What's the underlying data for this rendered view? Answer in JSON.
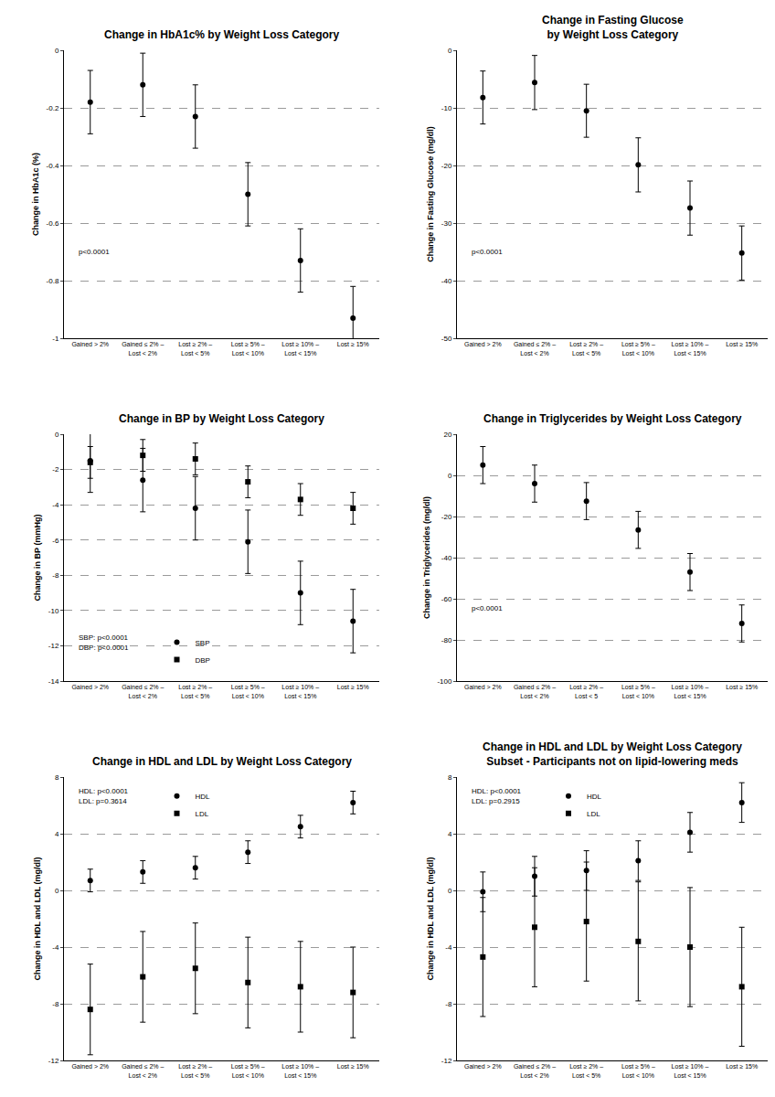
{
  "chart_data": [
    {
      "type": "scatter",
      "title": "Change in HbA1c% by Weight Loss Category",
      "y_label": "Change in HbA1c (%)",
      "categories": [
        "Gained > 2%",
        "Gained ≤ 2% – Lost < 2%",
        "Lost ≥ 2% – Lost < 5%",
        "Lost ≥ 5% – Lost < 10%",
        "Lost ≥ 10% – Lost < 15%",
        "Lost ≥ 15%"
      ],
      "series": [
        {
          "marker": "circle",
          "color": "#000000",
          "values": [
            -0.18,
            -0.12,
            -0.23,
            -0.5,
            -0.73,
            -0.93
          ],
          "error": [
            0.11,
            0.11,
            0.11,
            0.11,
            0.11,
            0.11
          ]
        }
      ],
      "ylim": [
        -1,
        0
      ],
      "yticks": [
        -1,
        -0.8,
        -0.6,
        -0.4,
        -0.2,
        0
      ],
      "grid": true,
      "annotations": [
        "p<0.0001"
      ]
    },
    {
      "type": "scatter",
      "title": "Change in Fasting Glucose\nby Weight Loss Category",
      "y_label": "Change in Fasting Glucose (mg/dl)",
      "categories": [
        "Gained > 2%",
        "Gained ≤ 2% – Lost < 2%",
        "Lost ≥ 2% – Lost < 5%",
        "Lost ≥ 5% – Lost < 10%",
        "Lost ≥ 10% – Lost < 15%",
        "Lost ≥ 15%"
      ],
      "series": [
        {
          "marker": "circle",
          "color": "#000000",
          "values": [
            -8.2,
            -5.6,
            -10.5,
            -19.9,
            -27.4,
            -35.2
          ],
          "error": [
            4.6,
            4.7,
            4.6,
            4.7,
            4.7,
            4.7
          ]
        }
      ],
      "ylim": [
        -50,
        0
      ],
      "yticks": [
        -50,
        -40,
        -30,
        -20,
        -10,
        0
      ],
      "grid": true,
      "annotations": [
        "p<0.0001"
      ]
    },
    {
      "type": "scatter",
      "title": "Change in BP by Weight Loss Category",
      "y_label": "Change in BP (mmHg)",
      "categories": [
        "Gained > 2%",
        "Gained ≤ 2% – Lost < 2%",
        "Lost ≥ 2% – Lost < 5%",
        "Lost ≥ 5% – Lost < 10%",
        "Lost ≥ 10% – Lost < 15%",
        "Lost ≥ 15%"
      ],
      "series": [
        {
          "name": "SBP",
          "marker": "circle",
          "color": "#000000",
          "values": [
            -1.5,
            -2.6,
            -4.2,
            -6.1,
            -9.0,
            -10.6
          ],
          "error": [
            1.8,
            1.8,
            1.8,
            1.8,
            1.8,
            1.8
          ]
        },
        {
          "name": "DBP",
          "marker": "square",
          "color": "#000000",
          "values": [
            -1.6,
            -1.2,
            -1.4,
            -2.7,
            -3.7,
            -4.2
          ],
          "error": [
            0.9,
            0.9,
            0.9,
            0.9,
            0.9,
            0.9
          ]
        }
      ],
      "ylim": [
        -14,
        0
      ],
      "yticks": [
        -14,
        -12,
        -10,
        -8,
        -6,
        -4,
        -2,
        0
      ],
      "grid": true,
      "legend": "bottom left",
      "annotations": [
        "SBP: p<0.0001",
        "DBP: p<0.0001"
      ]
    },
    {
      "type": "scatter",
      "title": "Change in Triglycerides by Weight Loss Category",
      "y_label": "Change in Triglycerides (mg/dl)",
      "categories": [
        "Gained > 2%",
        "Gained ≤ 2% – Lost < 2%",
        "Lost ≥ 2% – Lost < 5",
        "Lost ≥ 5% – Lost < 10%",
        "Lost ≥ 10% – Lost < 15%",
        "Lost ≥ 15%"
      ],
      "series": [
        {
          "marker": "circle",
          "color": "#000000",
          "values": [
            5,
            -4,
            -12.5,
            -26.5,
            -47,
            -72
          ],
          "error": [
            9,
            9,
            9,
            9,
            9,
            9
          ]
        }
      ],
      "ylim": [
        -100,
        20
      ],
      "yticks": [
        -100,
        -80,
        -60,
        -40,
        -20,
        0,
        20
      ],
      "grid": true,
      "annotations": [
        "p<0.0001"
      ]
    },
    {
      "type": "scatter",
      "title": "Change in HDL and LDL by Weight Loss Category",
      "y_label": "Change in HDL and LDL (mg/dl)",
      "categories": [
        "Gained > 2%",
        "Gained ≤ 2% – Lost < 2%",
        "Lost ≥ 2% – Lost < 5%",
        "Lost ≥ 5% – Lost < 10%",
        "Lost ≥ 10% – Lost < 15%",
        "Lost ≥ 15%"
      ],
      "series": [
        {
          "name": "HDL",
          "marker": "circle",
          "color": "#000000",
          "values": [
            0.7,
            1.3,
            1.6,
            2.7,
            4.5,
            6.2
          ],
          "error": [
            0.8,
            0.8,
            0.8,
            0.8,
            0.8,
            0.8
          ]
        },
        {
          "name": "LDL",
          "marker": "square",
          "color": "#000000",
          "values": [
            -8.4,
            -6.1,
            -5.5,
            -6.5,
            -6.8,
            -7.2
          ],
          "error": [
            3.2,
            3.2,
            3.2,
            3.2,
            3.2,
            3.2
          ]
        }
      ],
      "ylim": [
        -12,
        8
      ],
      "yticks": [
        -12,
        -8,
        -4,
        0,
        4,
        8
      ],
      "grid": true,
      "legend": "top left",
      "annotations": [
        "HDL: p<0.0001",
        "LDL: p=0.3614"
      ]
    },
    {
      "type": "scatter",
      "title": "Change in HDL and LDL by Weight Loss Category\nSubset - Participants not on lipid-lowering meds",
      "y_label": "Change in HDL and LDL (mg/dl)",
      "categories": [
        "Gained > 2%",
        "Gained ≤ 2% – Lost < 2%",
        "Lost ≥ 2% – Lost < 5%",
        "Lost ≥ 5% – Lost < 10%",
        "Lost ≥ 10% – Lost < 15%",
        "Lost ≥ 15%"
      ],
      "series": [
        {
          "name": "HDL",
          "marker": "circle",
          "color": "#000000",
          "values": [
            -0.1,
            1.0,
            1.4,
            2.1,
            4.1,
            6.2
          ],
          "error": [
            1.4,
            1.4,
            1.4,
            1.4,
            1.4,
            1.4
          ]
        },
        {
          "name": "LDL",
          "marker": "square",
          "color": "#000000",
          "values": [
            -4.7,
            -2.6,
            -2.2,
            -3.6,
            -4.0,
            -6.8
          ],
          "error": [
            4.2,
            4.2,
            4.2,
            4.2,
            4.2,
            4.2
          ]
        }
      ],
      "ylim": [
        -12,
        8
      ],
      "yticks": [
        -12,
        -8,
        -4,
        0,
        4,
        8
      ],
      "grid": true,
      "legend": "top left",
      "annotations": [
        "HDL: p<0.0001",
        "LDL: p=0.2915"
      ]
    }
  ]
}
